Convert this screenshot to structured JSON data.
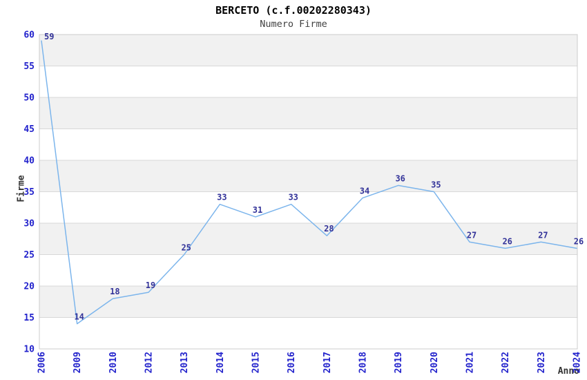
{
  "header": {
    "title": "BERCETO (c.f.00202280343)",
    "subtitle": "Numero Firme"
  },
  "chart_data": {
    "type": "line",
    "title": "BERCETO (c.f.00202280343)",
    "subtitle": "Numero Firme",
    "xlabel": "Anno",
    "ylabel": "Firme",
    "categories": [
      "2006",
      "2009",
      "2010",
      "2012",
      "2013",
      "2014",
      "2015",
      "2016",
      "2017",
      "2018",
      "2019",
      "2020",
      "2021",
      "2022",
      "2023",
      "2024"
    ],
    "values": [
      59,
      14,
      18,
      19,
      25,
      33,
      31,
      33,
      28,
      34,
      36,
      35,
      27,
      26,
      27,
      26
    ],
    "ylim": [
      10,
      60
    ],
    "ytick_step": 5,
    "yticks": [
      10,
      15,
      20,
      25,
      30,
      35,
      40,
      45,
      50,
      55,
      60
    ],
    "grid": true,
    "alternating_bands": true,
    "legend_position": "none",
    "data_labels_visible": true,
    "colors": {
      "line": "#7cb5ec",
      "data_label": "#333399",
      "tick_label": "#2222cc",
      "band_gray": "#f1f1f1",
      "band_white": "#ffffff",
      "gridline": "#d8d8d8",
      "frame": "#cccccc",
      "title_text": "#000000",
      "subtitle_text": "#404040",
      "axis_title_text": "#333333"
    }
  }
}
